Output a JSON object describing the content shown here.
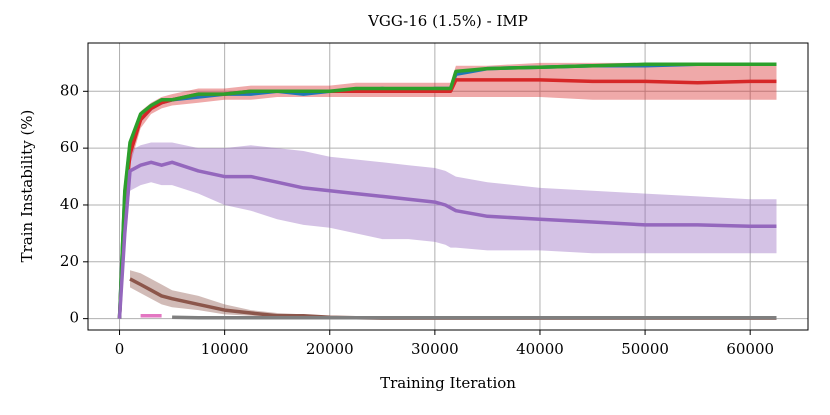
{
  "chart_data": {
    "type": "line",
    "title": "VGG-16 (1.5%) - IMP",
    "x_label": "Training Iteration",
    "y_label": "Train Instability (%)",
    "x": [
      0,
      500,
      1000,
      2000,
      3000,
      4000,
      5000,
      7500,
      10000,
      12500,
      15000,
      17500,
      20000,
      22500,
      25000,
      27500,
      30000,
      31000,
      31500,
      32000,
      35000,
      40000,
      45000,
      50000,
      55000,
      60000,
      62500
    ],
    "xlim": [
      -3000,
      65500
    ],
    "ylim": [
      -4,
      97
    ],
    "xticks": [
      0,
      10000,
      20000,
      30000,
      40000,
      50000,
      60000
    ],
    "yticks": [
      0,
      20,
      40,
      60,
      80
    ],
    "grid": true,
    "series": [
      {
        "color": "#1f77b4",
        "values": [
          0,
          44,
          61,
          70,
          74,
          76,
          77,
          78,
          79,
          79,
          80,
          79,
          80,
          80,
          81,
          80,
          81,
          81,
          81,
          86,
          88,
          88.5,
          89,
          89,
          89.5,
          89.5,
          89.5
        ]
      },
      {
        "color": "#d62728",
        "values": [
          0,
          40,
          58,
          70,
          74,
          76,
          77,
          79,
          79,
          80,
          80,
          80,
          80,
          80,
          80,
          80,
          80,
          80,
          80,
          84,
          84,
          84,
          83.5,
          83.5,
          83,
          83.5,
          83.5
        ],
        "lower": [
          0,
          36,
          54,
          67,
          72,
          74,
          75,
          76,
          77,
          77,
          78,
          78,
          78,
          78,
          78,
          78,
          78,
          78,
          78,
          78,
          78,
          78,
          77,
          77,
          77,
          77,
          77
        ],
        "upper": [
          0,
          44,
          62,
          73,
          76,
          78,
          79,
          81,
          81,
          82,
          82,
          82,
          82,
          83,
          83,
          83,
          83,
          83,
          83,
          89,
          89,
          90,
          90,
          90,
          90,
          90,
          90
        ]
      },
      {
        "color": "#2ca02c",
        "values": [
          0,
          45,
          62,
          72,
          75,
          77,
          77,
          79,
          79,
          80,
          80,
          80,
          80,
          81,
          81,
          81,
          81,
          81,
          81,
          87,
          88,
          88.5,
          89,
          89.5,
          89.5,
          89.5,
          89.5
        ]
      },
      {
        "color": "#9467bd",
        "values": [
          0,
          30,
          52,
          54,
          55,
          54,
          55,
          52,
          50,
          50,
          48,
          46,
          45,
          44,
          43,
          42,
          41,
          40,
          39,
          38,
          36,
          35,
          34,
          33,
          33,
          32.5,
          32.5
        ],
        "lower": [
          0,
          24,
          45,
          47,
          48,
          47,
          47,
          44,
          40,
          38,
          35,
          33,
          32,
          30,
          28,
          28,
          27,
          26,
          25,
          25,
          24,
          24,
          23,
          23,
          23,
          23,
          23
        ],
        "upper": [
          0,
          36,
          59,
          61,
          62,
          62,
          62,
          60,
          60,
          61,
          60,
          59,
          57,
          56,
          55,
          54,
          53,
          52,
          51,
          50,
          48,
          46,
          45,
          44,
          43,
          42,
          42
        ]
      },
      {
        "color": "#8c564b",
        "values": [
          null,
          null,
          14,
          12,
          10,
          8,
          7,
          5,
          3,
          2,
          1,
          1,
          0.5,
          0.3,
          0.2,
          0.2,
          0.2,
          0.2,
          0.2,
          0.2,
          0.2,
          0.2,
          0.2,
          0.2,
          0.2,
          0.2,
          0.2
        ],
        "lower": [
          null,
          null,
          11,
          9,
          7,
          5,
          4,
          3,
          1.5,
          1,
          0.5,
          0.3,
          0.2,
          0.1,
          0.1,
          0.1,
          0.1,
          0.1,
          0.1,
          0.1,
          0.1,
          0.1,
          0.1,
          0.1,
          0.1,
          0.1,
          0.1
        ],
        "upper": [
          null,
          null,
          17,
          16,
          14,
          12,
          10,
          8,
          5,
          3,
          2,
          1.5,
          1,
          0.6,
          0.4,
          0.4,
          0.4,
          0.4,
          0.4,
          0.4,
          0.4,
          0.4,
          0.4,
          0.4,
          0.4,
          0.4,
          0.4
        ]
      },
      {
        "color": "#e377c2",
        "values": [
          null,
          null,
          null,
          1,
          1,
          1,
          null,
          null,
          null,
          null,
          null,
          null,
          null,
          null,
          null,
          null,
          null,
          null,
          null,
          null,
          null,
          null,
          null,
          null,
          null,
          null,
          null
        ]
      },
      {
        "color": "#7f7f7f",
        "values": [
          null,
          null,
          null,
          null,
          null,
          null,
          0.5,
          0.3,
          0.3,
          0.3,
          0.3,
          0.3,
          0.3,
          0.3,
          0.3,
          0.3,
          0.3,
          0.3,
          0.3,
          0.3,
          0.3,
          0.3,
          0.3,
          0.3,
          0.3,
          0.3,
          0.3
        ]
      }
    ]
  }
}
